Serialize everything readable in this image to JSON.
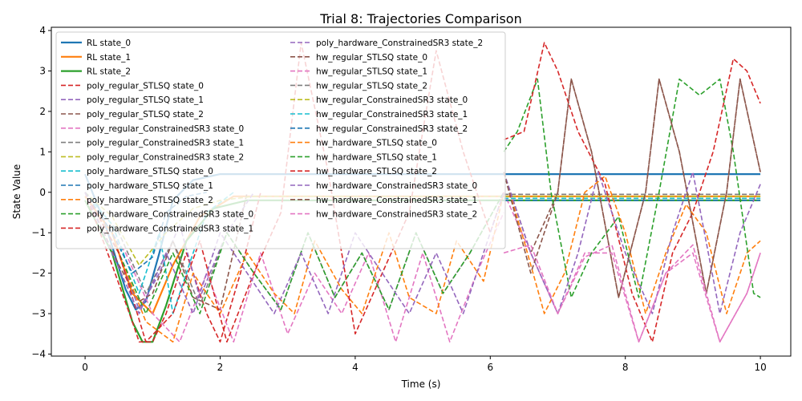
{
  "chart_data": {
    "type": "line",
    "title": "Trial 8: Trajectories Comparison",
    "xlabel": "Time (s)",
    "ylabel": "State Value",
    "xlim": [
      -0.5,
      10.45
    ],
    "ylim": [
      -4.05,
      4.08
    ],
    "xticks": [
      0,
      2,
      4,
      6,
      8,
      10
    ],
    "yticks": [
      -4,
      -3,
      -2,
      -1,
      0,
      1,
      2,
      3,
      4
    ],
    "grid": false,
    "legend_placement": "top-left, two columns",
    "series": [
      {
        "name": "RL state_0",
        "color": "#1f77b4",
        "dash": "solid",
        "x": [
          0,
          0.3,
          0.6,
          0.75,
          0.9,
          1.1,
          1.3,
          1.6,
          2.0,
          10.0
        ],
        "y": [
          0.45,
          -0.8,
          -2.4,
          -2.9,
          -2.7,
          -1.5,
          -0.2,
          0.3,
          0.45,
          0.45
        ]
      },
      {
        "name": "RL state_1",
        "color": "#ff7f0e",
        "dash": "solid",
        "x": [
          0,
          0.4,
          0.7,
          1.0,
          1.3,
          1.7,
          2.2,
          10.0
        ],
        "y": [
          -0.1,
          -1.0,
          -2.5,
          -3.0,
          -1.8,
          -0.6,
          -0.1,
          -0.1
        ]
      },
      {
        "name": "RL state_2",
        "color": "#2ca02c",
        "dash": "solid",
        "x": [
          0,
          0.4,
          0.7,
          0.85,
          1.0,
          1.2,
          1.5,
          1.9,
          2.4,
          10.0
        ],
        "y": [
          -0.2,
          -1.5,
          -3.2,
          -3.7,
          -3.7,
          -2.8,
          -1.2,
          -0.4,
          -0.2,
          -0.2
        ]
      },
      {
        "name": "poly_regular_STLSQ state_0",
        "color": "#d62728",
        "dash": "dashed",
        "x": [
          0,
          0.4,
          0.7,
          0.8,
          1.0,
          1.2,
          1.5,
          1.8,
          2.0,
          2.3,
          2.6
        ],
        "y": [
          0.0,
          -1.8,
          -3.2,
          -3.7,
          -3.7,
          -3.0,
          -1.5,
          -3.0,
          -3.7,
          -2.0,
          0.0
        ]
      },
      {
        "name": "poly_regular_STLSQ state_1",
        "color": "#9467bd",
        "dash": "dashed",
        "x": [
          0,
          0.5,
          0.8,
          1.1,
          1.4,
          1.7,
          2.1,
          2.5
        ],
        "y": [
          0.0,
          -1.5,
          -2.9,
          -2.0,
          -0.8,
          -2.6,
          -1.0,
          0.0
        ]
      },
      {
        "name": "poly_regular_STLSQ state_2",
        "color": "#8c564b",
        "dash": "dashed",
        "x": [
          0,
          0.5,
          0.8,
          1.0,
          1.3,
          1.6,
          2.0,
          2.4
        ],
        "y": [
          0.0,
          -1.8,
          -2.7,
          -2.5,
          -1.2,
          -2.6,
          -2.9,
          0.0
        ]
      },
      {
        "name": "poly_regular_ConstrainedSR3 state_0",
        "color": "#e377c2",
        "dash": "dashed",
        "x": [
          0,
          0.6,
          1.0,
          1.4,
          1.8,
          2.2,
          2.6,
          3.0,
          3.4,
          3.8,
          4.2,
          4.6,
          5.0,
          5.4,
          5.8,
          6.2
        ],
        "y": [
          0.0,
          -1.5,
          -3.0,
          -3.7,
          -2.0,
          -3.7,
          -1.5,
          -3.5,
          -2.0,
          -3.0,
          -1.5,
          -3.7,
          -1.5,
          -3.7,
          -2.0,
          -0.5
        ]
      },
      {
        "name": "poly_regular_ConstrainedSR3 state_1",
        "color": "#7f7f7f",
        "dash": "dashed",
        "x": [
          0,
          0.5,
          0.9,
          1.3,
          1.7,
          2.1,
          2.5,
          2.9,
          3.3,
          3.7,
          4.1,
          4.5,
          4.9,
          5.3,
          5.7,
          6.2
        ],
        "y": [
          0.0,
          -1.0,
          -2.5,
          -1.2,
          -2.8,
          -1.0,
          -2.0,
          -2.9,
          -1.0,
          -2.6,
          -1.5,
          -2.9,
          -1.0,
          -2.5,
          -1.5,
          0.0
        ]
      },
      {
        "name": "poly_regular_ConstrainedSR3 state_2",
        "color": "#bcbd22",
        "dash": "dashed",
        "x": [
          0,
          0.4,
          0.8,
          1.2,
          1.6,
          2.0,
          2.5,
          6.2
        ],
        "y": [
          0.0,
          -0.6,
          -1.8,
          -1.0,
          -0.4,
          -0.2,
          -0.1,
          -0.1
        ]
      },
      {
        "name": "poly_hardware_STLSQ state_0",
        "color": "#17becf",
        "dash": "dashed",
        "x": [
          0,
          0.4,
          0.8,
          1.1,
          1.3,
          1.5,
          1.8,
          2.2
        ],
        "y": [
          0.0,
          -0.8,
          -2.5,
          -1.0,
          -3.0,
          -2.0,
          -0.5,
          0.0
        ]
      },
      {
        "name": "poly_hardware_STLSQ state_1",
        "color": "#1f77b4",
        "dash": "dashed",
        "x": [
          0,
          0.4,
          0.7,
          1.0,
          1.2,
          1.5,
          1.8
        ],
        "y": [
          0.0,
          -1.0,
          -2.0,
          -1.6,
          -0.5,
          -0.1,
          0.0
        ]
      },
      {
        "name": "poly_hardware_STLSQ state_2",
        "color": "#ff7f0e",
        "dash": "dashed",
        "x": [
          0,
          0.5,
          0.9,
          1.3,
          1.6,
          2.0,
          2.4,
          2.8,
          3.1,
          3.4,
          3.8,
          4.1,
          4.5,
          4.8,
          5.2,
          5.5,
          5.9,
          6.2
        ],
        "y": [
          0.0,
          -1.5,
          -3.2,
          -3.7,
          -2.0,
          -3.0,
          -1.5,
          -2.5,
          -3.0,
          -1.2,
          -2.4,
          -3.0,
          -1.0,
          -2.6,
          -3.0,
          -1.2,
          -2.2,
          0.0
        ]
      },
      {
        "name": "poly_hardware_ConstrainedSR3 state_0",
        "color": "#2ca02c",
        "dash": "dashed",
        "x": [
          0,
          0.5,
          0.9,
          1.3,
          1.7,
          2.1,
          2.5,
          2.9,
          3.3,
          3.7,
          4.1,
          4.5,
          4.9,
          5.3,
          5.7,
          6.2
        ],
        "y": [
          0.0,
          -1.5,
          -3.0,
          -1.5,
          -3.0,
          -1.0,
          -2.0,
          -2.9,
          -1.0,
          -2.6,
          -1.5,
          -2.9,
          -1.0,
          -2.5,
          -1.5,
          0.0
        ]
      },
      {
        "name": "poly_hardware_ConstrainedSR3 state_1",
        "color": "#d62728",
        "dash": "dashed",
        "x": [
          0,
          0.5,
          0.9,
          1.3,
          1.7,
          2.1,
          2.5,
          2.9,
          3.2,
          3.6,
          4.0,
          4.4,
          4.8,
          5.2,
          5.6,
          6.0,
          6.2
        ],
        "y": [
          0.0,
          -1.5,
          -3.7,
          -3.0,
          -1.2,
          -3.7,
          -2.0,
          -0.5,
          3.7,
          0.5,
          -3.5,
          -2.0,
          -0.5,
          3.5,
          1.0,
          -1.0,
          0.0
        ]
      },
      {
        "name": "poly_hardware_ConstrainedSR3 state_2",
        "color": "#9467bd",
        "dash": "dashed",
        "x": [
          0,
          0.4,
          0.8,
          1.2,
          1.6,
          2.0,
          2.4,
          2.8,
          3.2,
          3.6,
          4.0,
          4.4,
          4.8,
          5.2,
          5.6,
          6.0,
          6.2
        ],
        "y": [
          0.0,
          -1.5,
          -3.0,
          -1.5,
          -3.0,
          -1.0,
          -2.0,
          -3.0,
          -1.5,
          -3.0,
          -1.0,
          -2.0,
          -3.0,
          -1.5,
          -3.0,
          -1.0,
          0.0
        ]
      },
      {
        "name": "hw_regular_STLSQ state_0",
        "color": "#8c564b",
        "dash": "dashed",
        "x": [
          6.2,
          6.6,
          7.0,
          7.2,
          7.5,
          7.9,
          8.3,
          8.5,
          8.8,
          9.2,
          9.5,
          9.7,
          10.0
        ],
        "y": [
          0.5,
          -1.5,
          0.0,
          2.8,
          1.0,
          -2.6,
          0.0,
          2.8,
          1.0,
          -2.5,
          0.0,
          2.8,
          0.5
        ]
      },
      {
        "name": "hw_regular_STLSQ state_1",
        "color": "#e377c2",
        "dash": "dashed",
        "x": [
          6.2,
          6.6,
          7.0,
          7.4,
          7.8,
          8.2,
          8.6,
          9.0,
          9.4,
          9.8,
          10.0
        ],
        "y": [
          0.0,
          -1.5,
          -3.0,
          -1.5,
          -1.5,
          -3.7,
          -2.0,
          -1.5,
          -3.7,
          -2.5,
          -1.5
        ]
      },
      {
        "name": "hw_regular_STLSQ state_2",
        "color": "#7f7f7f",
        "dash": "dashed",
        "x": [
          6.2,
          10.0
        ],
        "y": [
          -0.05,
          -0.05
        ]
      },
      {
        "name": "hw_regular_ConstrainedSR3 state_0",
        "color": "#bcbd22",
        "dash": "dashed",
        "x": [
          6.2,
          10.0
        ],
        "y": [
          -0.1,
          -0.1
        ]
      },
      {
        "name": "hw_regular_ConstrainedSR3 state_1",
        "color": "#17becf",
        "dash": "dashed",
        "x": [
          6.2,
          10.0
        ],
        "y": [
          -0.15,
          -0.15
        ]
      },
      {
        "name": "hw_regular_ConstrainedSR3 state_2",
        "color": "#1f77b4",
        "dash": "dashed",
        "x": [
          6.2,
          10.0
        ],
        "y": [
          -0.2,
          -0.2
        ]
      },
      {
        "name": "hw_hardware_STLSQ state_0",
        "color": "#ff7f0e",
        "dash": "dashed",
        "x": [
          6.2,
          6.5,
          6.8,
          7.1,
          7.4,
          7.7,
          8.0,
          8.3,
          8.6,
          8.9,
          9.2,
          9.5,
          9.8,
          10.0
        ],
        "y": [
          0.5,
          -1.2,
          -3.0,
          -2.0,
          0.0,
          0.4,
          -1.0,
          -3.0,
          -1.5,
          -0.3,
          -1.0,
          -3.0,
          -1.5,
          -1.2
        ]
      },
      {
        "name": "hw_hardware_STLSQ state_1",
        "color": "#2ca02c",
        "dash": "dashed",
        "x": [
          6.2,
          6.4,
          6.7,
          6.9,
          7.2,
          7.5,
          7.9,
          8.2,
          8.5,
          8.8,
          9.1,
          9.4,
          9.6,
          9.9,
          10.0
        ],
        "y": [
          1.0,
          1.5,
          2.8,
          0.0,
          -2.6,
          -1.5,
          -0.6,
          -2.6,
          0.0,
          2.8,
          2.4,
          2.8,
          1.0,
          -2.5,
          -2.6
        ]
      },
      {
        "name": "hw_hardware_STLSQ state_2",
        "color": "#d62728",
        "dash": "dashed",
        "x": [
          6.2,
          6.5,
          6.8,
          7.0,
          7.3,
          7.7,
          8.1,
          8.4,
          8.7,
          9.0,
          9.3,
          9.6,
          9.8,
          10.0
        ],
        "y": [
          1.3,
          1.5,
          3.7,
          3.0,
          1.5,
          0.2,
          -2.5,
          -3.7,
          -1.5,
          -0.5,
          1.0,
          3.3,
          3.0,
          2.2
        ]
      },
      {
        "name": "hw_hardware_ConstrainedSR3 state_0",
        "color": "#9467bd",
        "dash": "dashed",
        "x": [
          6.2,
          6.6,
          7.0,
          7.3,
          7.6,
          8.0,
          8.4,
          8.7,
          9.0,
          9.4,
          9.7,
          10.0
        ],
        "y": [
          0.5,
          -1.5,
          -3.0,
          -1.5,
          0.5,
          -1.5,
          -3.0,
          -1.0,
          0.5,
          -3.0,
          -1.0,
          0.2
        ]
      },
      {
        "name": "hw_hardware_ConstrainedSR3 state_1",
        "color": "#8c564b",
        "dash": "dashed",
        "x": [
          6.2,
          6.6,
          7.0,
          7.2,
          7.5,
          7.9,
          8.3,
          8.5,
          8.8,
          9.2,
          9.5,
          9.7,
          10.0
        ],
        "y": [
          0.5,
          -2.0,
          0.0,
          2.8,
          1.0,
          -2.6,
          0.0,
          2.8,
          1.0,
          -2.5,
          0.0,
          2.8,
          0.5
        ]
      },
      {
        "name": "hw_hardware_ConstrainedSR3 state_2",
        "color": "#e377c2",
        "dash": "dashed",
        "x": [
          6.2,
          6.6,
          7.0,
          7.4,
          7.8,
          8.2,
          8.6,
          9.0,
          9.4,
          9.8,
          10.0
        ],
        "y": [
          -1.5,
          -1.3,
          -3.0,
          -1.6,
          -1.3,
          -3.7,
          -2.0,
          -1.3,
          -3.7,
          -2.5,
          -1.5
        ]
      }
    ]
  }
}
